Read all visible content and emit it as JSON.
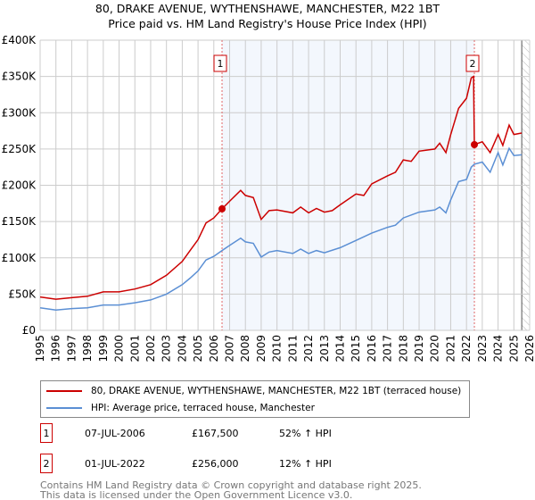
{
  "title": "80, DRAKE AVENUE, WYTHENSHAWE, MANCHESTER, M22 1BT",
  "subtitle": "Price paid vs. HM Land Registry's House Price Index (HPI)",
  "chart_data": {
    "type": "line",
    "title": "80, DRAKE AVENUE, WYTHENSHAWE, MANCHESTER, M22 1BT",
    "subtitle": "Price paid vs. HM Land Registry's House Price Index (HPI)",
    "xlim": [
      1995,
      2026
    ],
    "ylim": [
      0,
      400000
    ],
    "x_ticks": [
      "1995",
      "1996",
      "1997",
      "1998",
      "1999",
      "2000",
      "2001",
      "2002",
      "2003",
      "2004",
      "2005",
      "2006",
      "2007",
      "2008",
      "2009",
      "2010",
      "2011",
      "2012",
      "2013",
      "2014",
      "2015",
      "2016",
      "2017",
      "2018",
      "2019",
      "2020",
      "2021",
      "2022",
      "2023",
      "2024",
      "2025",
      "2026"
    ],
    "y_ticks": [
      {
        "v": 0,
        "label": "£0"
      },
      {
        "v": 50000,
        "label": "£50K"
      },
      {
        "v": 100000,
        "label": "£100K"
      },
      {
        "v": 150000,
        "label": "£150K"
      },
      {
        "v": 200000,
        "label": "£200K"
      },
      {
        "v": 250000,
        "label": "£250K"
      },
      {
        "v": 300000,
        "label": "£300K"
      },
      {
        "v": 350000,
        "label": "£350K"
      },
      {
        "v": 400000,
        "label": "£400K"
      }
    ],
    "grid": true,
    "shaded_range": [
      2006.52,
      2022.5
    ],
    "hatched_from": 2025.5,
    "series": [
      {
        "name": "80, DRAKE AVENUE, WYTHENSHAWE, MANCHESTER, M22 1BT (terraced house)",
        "color": "#cc0000",
        "x": [
          1995,
          1996,
          1997,
          1998,
          1999,
          2000,
          2001,
          2002,
          2003,
          2004,
          2004.5,
          2005,
          2005.5,
          2006,
          2006.52,
          2007,
          2007.7,
          2008,
          2008.5,
          2009,
          2009.5,
          2010,
          2011,
          2011.5,
          2012,
          2012.5,
          2013,
          2013.5,
          2014,
          2015,
          2015.5,
          2016,
          2017,
          2017.5,
          2018,
          2018.5,
          2019,
          2020,
          2020.3,
          2020.7,
          2021,
          2021.5,
          2022,
          2022.3,
          2022.45,
          2022.5,
          2023,
          2023.5,
          2024,
          2024.3,
          2024.7,
          2025,
          2025.5
        ],
        "y": [
          46000,
          43000,
          45000,
          47000,
          53000,
          53000,
          57000,
          63000,
          76000,
          95000,
          110000,
          125000,
          148000,
          155000,
          167500,
          178000,
          193000,
          186000,
          183000,
          153000,
          165000,
          166000,
          162000,
          170000,
          162000,
          168000,
          163000,
          165000,
          173000,
          188000,
          186000,
          202000,
          213000,
          218000,
          235000,
          233000,
          247000,
          250000,
          258000,
          245000,
          270000,
          306000,
          320000,
          348000,
          350000,
          256000,
          260000,
          245000,
          270000,
          255000,
          283000,
          270000,
          272000
        ]
      },
      {
        "name": "HPI: Average price, terraced house, Manchester",
        "color": "#5b8fd4",
        "x": [
          1995,
          1996,
          1997,
          1998,
          1999,
          2000,
          2001,
          2002,
          2003,
          2004,
          2004.5,
          2005,
          2005.5,
          2006,
          2006.52,
          2007,
          2007.7,
          2008,
          2008.5,
          2009,
          2009.5,
          2010,
          2011,
          2011.5,
          2012,
          2012.5,
          2013,
          2014,
          2015,
          2016,
          2017,
          2017.5,
          2018,
          2019,
          2020,
          2020.3,
          2020.7,
          2021,
          2021.5,
          2022,
          2022.3,
          2022.5,
          2023,
          2023.5,
          2024,
          2024.3,
          2024.7,
          2025,
          2025.5
        ],
        "y": [
          31000,
          28000,
          30000,
          31000,
          35000,
          35000,
          38000,
          42000,
          50000,
          63000,
          72000,
          82000,
          97000,
          102000,
          110000,
          117000,
          127000,
          122000,
          120000,
          101000,
          108000,
          110000,
          106000,
          112000,
          106000,
          110000,
          107000,
          114000,
          124000,
          134000,
          142000,
          145000,
          155000,
          163000,
          166000,
          170000,
          162000,
          180000,
          205000,
          208000,
          225000,
          229000,
          232000,
          218000,
          245000,
          228000,
          251000,
          241000,
          242000
        ]
      }
    ],
    "annotations": [
      {
        "label": "1",
        "x": 2006.52,
        "y": 167500
      },
      {
        "label": "2",
        "x": 2022.5,
        "y": 256000
      }
    ]
  },
  "legend": [
    {
      "label": "80, DRAKE AVENUE, WYTHENSHAWE, MANCHESTER, M22 1BT (terraced house)",
      "color": "#cc0000"
    },
    {
      "label": "HPI: Average price, terraced house, Manchester",
      "color": "#5b8fd4"
    }
  ],
  "transactions": [
    {
      "num": "1",
      "date": "07-JUL-2006",
      "price": "£167,500",
      "hpi": "52% ↑ HPI"
    },
    {
      "num": "2",
      "date": "01-JUL-2022",
      "price": "£256,000",
      "hpi": "12% ↑ HPI"
    }
  ],
  "footer": {
    "line1": "Contains HM Land Registry data © Crown copyright and database right 2025.",
    "line2": "This data is licensed under the Open Government Licence v3.0."
  }
}
